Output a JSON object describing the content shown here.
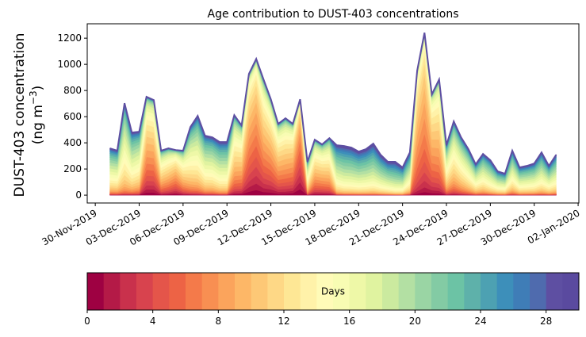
{
  "chart_data": {
    "type": "area",
    "stacked": true,
    "title": "Age contribution to DUST-403 concentrations",
    "ylabel_line1": "DUST-403 concentration",
    "ylabel_line2_prefix": "(ng m",
    "ylabel_line2_sup": "−3",
    "ylabel_line2_suffix": ")",
    "xlabel": "",
    "ylim": [
      -60,
      1310
    ],
    "yticks": [
      0,
      200,
      400,
      600,
      800,
      1000,
      1200
    ],
    "xlim_days": [
      -0.55,
      33.05
    ],
    "x_origin_date": "30-Nov-2019",
    "xticks": [
      {
        "day": 0,
        "label": "30-Nov-2019"
      },
      {
        "day": 3,
        "label": "03-Dec-2019"
      },
      {
        "day": 6,
        "label": "06-Dec-2019"
      },
      {
        "day": 9,
        "label": "09-Dec-2019"
      },
      {
        "day": 12,
        "label": "12-Dec-2019"
      },
      {
        "day": 15,
        "label": "15-Dec-2019"
      },
      {
        "day": 18,
        "label": "18-Dec-2019"
      },
      {
        "day": 21,
        "label": "21-Dec-2019"
      },
      {
        "day": 24,
        "label": "24-Dec-2019"
      },
      {
        "day": 27,
        "label": "27-Dec-2019"
      },
      {
        "day": 30,
        "label": "30-Dec-2019"
      },
      {
        "day": 33,
        "label": "02-Jan-2020"
      }
    ],
    "sampling_interval_days": 0.5,
    "first_sample_day": 1.0,
    "total_concentration": [
      358,
      340,
      703,
      479,
      485,
      752,
      727,
      340,
      358,
      345,
      340,
      521,
      606,
      455,
      442,
      406,
      406,
      612,
      533,
      927,
      1042,
      885,
      733,
      545,
      588,
      545,
      733,
      255,
      424,
      388,
      436,
      382,
      376,
      364,
      333,
      352,
      394,
      309,
      255,
      255,
      212,
      327,
      952,
      1242,
      770,
      885,
      382,
      564,
      442,
      352,
      236,
      315,
      267,
      182,
      164,
      340,
      212,
      224,
      242,
      327,
      224,
      309
    ],
    "mean_age_days": [
      17,
      17,
      16,
      17,
      16,
      9,
      9,
      12,
      11,
      9,
      12,
      15,
      16,
      17,
      17,
      18,
      18,
      12,
      11,
      8,
      7,
      9,
      9,
      10,
      10,
      9,
      5,
      15,
      11,
      11,
      12,
      19,
      20,
      20,
      20,
      20,
      20,
      20,
      20,
      21,
      20,
      18,
      9,
      8,
      9,
      10,
      15,
      14,
      15,
      16,
      17,
      17,
      18,
      18,
      18,
      17,
      18,
      18,
      18,
      18,
      18,
      18
    ],
    "age_spread_days": [
      6,
      6,
      5,
      6,
      6,
      6,
      6,
      6,
      6,
      6,
      6,
      6,
      6,
      6,
      6,
      6,
      6,
      6,
      6,
      5,
      5,
      6,
      6,
      6,
      6,
      6,
      5,
      5,
      6,
      6,
      6,
      6,
      6,
      6,
      6,
      6,
      6,
      6,
      6,
      6,
      6,
      6,
      4,
      4,
      5,
      5,
      6,
      6,
      6,
      6,
      6,
      6,
      6,
      6,
      6,
      6,
      6,
      6,
      6,
      6,
      6,
      6
    ],
    "age_bins": {
      "min": 0,
      "max": 30,
      "count": 30,
      "units": "days"
    },
    "colormap": "Spectral",
    "bin_colors": [
      "#9e0142",
      "#b41a47",
      "#c9314c",
      "#d8434e",
      "#e4554a",
      "#ed6345",
      "#f47a4a",
      "#f88f52",
      "#fba45c",
      "#fdb767",
      "#fdc876",
      "#fed886",
      "#fee795",
      "#fff2a9",
      "#fffbb8",
      "#f8fcb3",
      "#eef8a7",
      "#e0f3a0",
      "#cbea9f",
      "#b3e0a3",
      "#9ad5a4",
      "#83cba4",
      "#6cc3a5",
      "#5eb1aa",
      "#4da1b2",
      "#3d8fba",
      "#3f7db7",
      "#4f6bae",
      "#5e4fa2",
      "#5a4a9f"
    ],
    "colorbar": {
      "label": "Days",
      "ticks": [
        0,
        4,
        8,
        12,
        16,
        20,
        24,
        28
      ],
      "range": [
        0,
        30
      ],
      "orientation": "horizontal",
      "placement": "bottom"
    },
    "grid": false,
    "legend": "none"
  }
}
